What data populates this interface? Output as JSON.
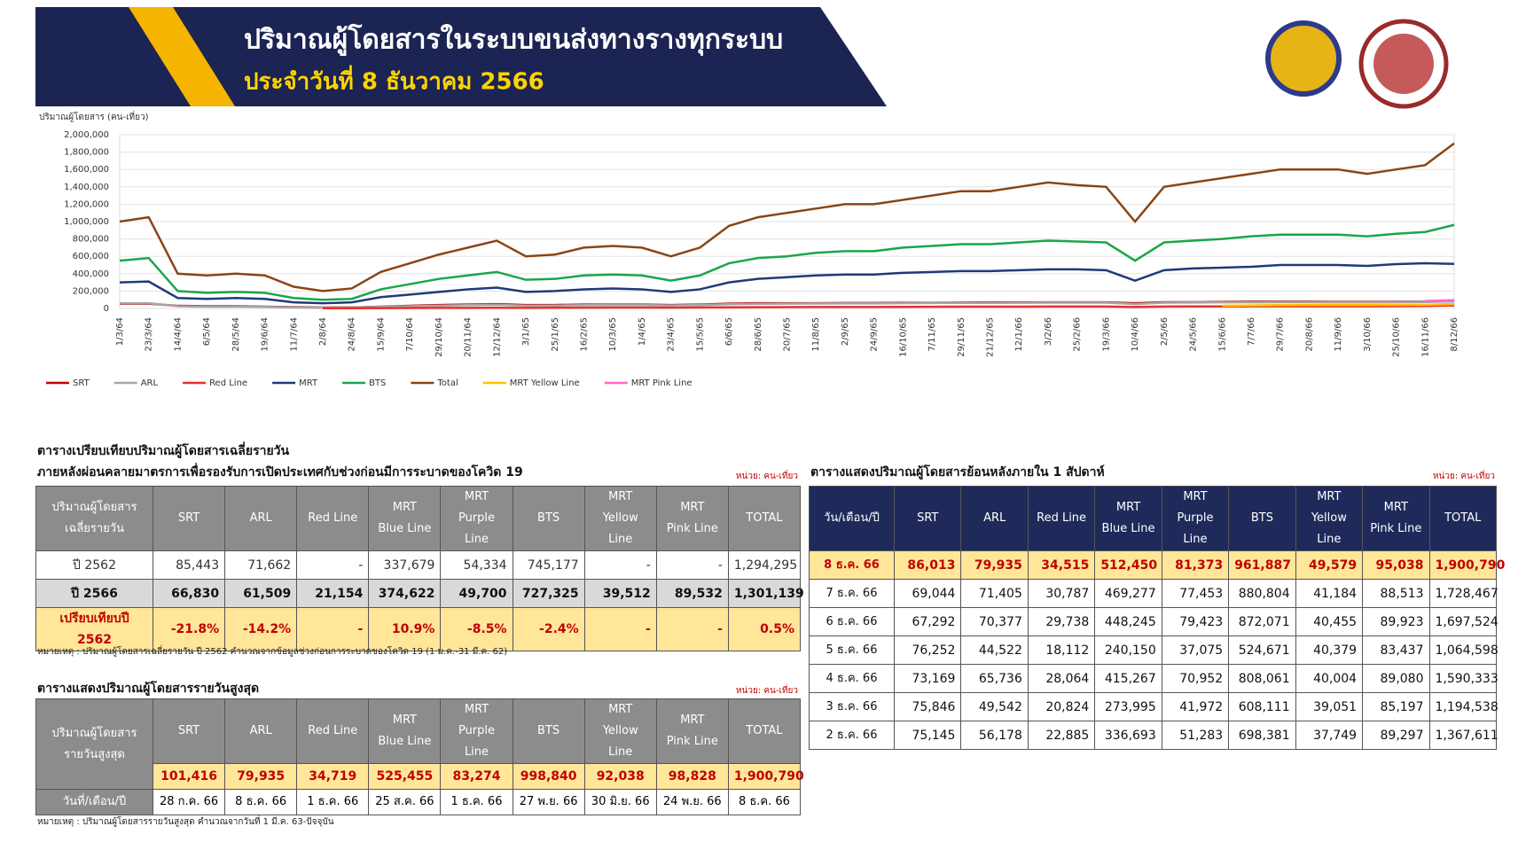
{
  "header": {
    "title": "ปริมาณผู้โดยสารในระบบขนส่งทางรางทุกระบบ",
    "subtitle": "ประจำวันที่ 8 ธันวาคม 2566"
  },
  "chart_data": {
    "type": "line",
    "y_label": "ปริมาณผู้โดยสาร (คน-เที่ยว)",
    "categories": [
      "1/3/64",
      "23/3/64",
      "14/4/64",
      "6/5/64",
      "28/5/64",
      "19/6/64",
      "11/7/64",
      "2/8/64",
      "24/8/64",
      "15/9/64",
      "7/10/64",
      "29/10/64",
      "20/11/64",
      "12/12/64",
      "3/1/65",
      "25/1/65",
      "16/2/65",
      "10/3/65",
      "1/4/65",
      "23/4/65",
      "15/5/65",
      "6/6/65",
      "28/6/65",
      "20/7/65",
      "11/8/65",
      "2/9/65",
      "24/9/65",
      "16/10/65",
      "7/11/65",
      "29/11/65",
      "21/12/65",
      "12/1/66",
      "3/2/66",
      "25/2/66",
      "19/3/66",
      "10/4/66",
      "2/5/66",
      "24/5/66",
      "15/6/66",
      "7/7/66",
      "29/7/66",
      "20/8/66",
      "11/9/66",
      "3/10/66",
      "25/10/66",
      "16/11/66",
      "8/12/66"
    ],
    "ylim": [
      0,
      2000000
    ],
    "yticks": [
      0,
      {
        "value": 200000,
        "label": "200,000"
      },
      {
        "value": 400000,
        "label": "400,000"
      },
      {
        "value": 600000,
        "label": "600,000"
      },
      {
        "value": 800000,
        "label": "800,000"
      },
      {
        "value": 1000000,
        "label": "1,000,000"
      },
      {
        "value": 1200000,
        "label": "1,200,000"
      },
      {
        "value": 1400000,
        "label": "1,400,000"
      },
      {
        "value": 1600000,
        "label": "1,600,000"
      },
      {
        "value": 1800000,
        "label": "1,800,000"
      },
      {
        "value": 2000000,
        "label": "2,000,000"
      }
    ],
    "grid": true,
    "series": [
      {
        "name": "SRT",
        "color": "#c00000",
        "values": [
          55000,
          55000,
          30000,
          25000,
          25000,
          20000,
          15000,
          10000,
          12000,
          20000,
          30000,
          40000,
          45000,
          50000,
          40000,
          40000,
          45000,
          45000,
          45000,
          40000,
          45000,
          55000,
          60000,
          60000,
          60000,
          62000,
          62000,
          65000,
          65000,
          68000,
          70000,
          70000,
          70000,
          70000,
          70000,
          60000,
          72000,
          72000,
          75000,
          78000,
          78000,
          78000,
          75000,
          75000,
          76000,
          78000,
          86013
        ]
      },
      {
        "name": "ARL",
        "color": "#a6a6a6",
        "values": [
          60000,
          60000,
          25000,
          20000,
          20000,
          18000,
          12000,
          8000,
          10000,
          18000,
          25000,
          32000,
          38000,
          42000,
          32000,
          33000,
          38000,
          40000,
          40000,
          35000,
          40000,
          48000,
          52000,
          55000,
          56000,
          58000,
          58000,
          60000,
          62000,
          64000,
          64000,
          65000,
          66000,
          66000,
          66000,
          50000,
          66000,
          68000,
          70000,
          70000,
          72000,
          72000,
          70000,
          70000,
          72000,
          74000,
          79935
        ]
      },
      {
        "name": "Red Line",
        "color": "#e8312a",
        "values": [
          null,
          null,
          null,
          null,
          null,
          null,
          null,
          3000,
          3000,
          4000,
          5000,
          6000,
          7000,
          8000,
          7000,
          8000,
          9000,
          10000,
          10000,
          9000,
          11000,
          13000,
          14000,
          15000,
          16000,
          17000,
          17000,
          18000,
          19000,
          20000,
          20000,
          21000,
          22000,
          22000,
          22000,
          16000,
          22000,
          23000,
          23000,
          24000,
          24000,
          24000,
          24000,
          24000,
          25000,
          28000,
          34515
        ]
      },
      {
        "name": "MRT",
        "color": "#1f3a7a",
        "values": [
          300000,
          310000,
          120000,
          110000,
          120000,
          110000,
          70000,
          60000,
          70000,
          130000,
          160000,
          190000,
          220000,
          240000,
          190000,
          200000,
          220000,
          230000,
          220000,
          190000,
          220000,
          300000,
          340000,
          360000,
          380000,
          390000,
          390000,
          410000,
          420000,
          430000,
          430000,
          440000,
          450000,
          450000,
          440000,
          320000,
          440000,
          460000,
          470000,
          480000,
          500000,
          500000,
          500000,
          490000,
          510000,
          520000,
          512450
        ]
      },
      {
        "name": "BTS",
        "color": "#1aa64a",
        "values": [
          550000,
          580000,
          200000,
          180000,
          190000,
          180000,
          120000,
          100000,
          110000,
          220000,
          280000,
          340000,
          380000,
          420000,
          330000,
          340000,
          380000,
          390000,
          380000,
          320000,
          380000,
          520000,
          580000,
          600000,
          640000,
          660000,
          660000,
          700000,
          720000,
          740000,
          740000,
          760000,
          780000,
          770000,
          760000,
          550000,
          760000,
          780000,
          800000,
          830000,
          850000,
          850000,
          850000,
          830000,
          860000,
          880000,
          961887
        ]
      },
      {
        "name": "Total",
        "color": "#8b4513",
        "values": [
          1000000,
          1050000,
          400000,
          380000,
          400000,
          380000,
          250000,
          200000,
          230000,
          420000,
          520000,
          620000,
          700000,
          780000,
          600000,
          620000,
          700000,
          720000,
          700000,
          600000,
          700000,
          950000,
          1050000,
          1100000,
          1150000,
          1200000,
          1200000,
          1250000,
          1300000,
          1350000,
          1350000,
          1400000,
          1450000,
          1420000,
          1400000,
          1000000,
          1400000,
          1450000,
          1500000,
          1550000,
          1600000,
          1600000,
          1600000,
          1550000,
          1600000,
          1650000,
          1900790
        ]
      },
      {
        "name": "MRT Yellow Line",
        "color": "#ffc000",
        "values": [
          null,
          null,
          null,
          null,
          null,
          null,
          null,
          null,
          null,
          null,
          null,
          null,
          null,
          null,
          null,
          null,
          null,
          null,
          null,
          null,
          null,
          null,
          null,
          null,
          null,
          null,
          null,
          null,
          null,
          null,
          null,
          null,
          null,
          null,
          null,
          null,
          null,
          null,
          30000,
          35000,
          38000,
          40000,
          40000,
          40000,
          41000,
          42000,
          49579
        ]
      },
      {
        "name": "MRT Pink Line",
        "color": "#ff66cc",
        "values": [
          null,
          null,
          null,
          null,
          null,
          null,
          null,
          null,
          null,
          null,
          null,
          null,
          null,
          null,
          null,
          null,
          null,
          null,
          null,
          null,
          null,
          null,
          null,
          null,
          null,
          null,
          null,
          null,
          null,
          null,
          null,
          null,
          null,
          null,
          null,
          null,
          null,
          null,
          null,
          null,
          null,
          null,
          null,
          null,
          null,
          85000,
          95038
        ]
      }
    ]
  },
  "table1": {
    "title": "ตารางเปรียบเทียบปริมาณผู้โดยสารเฉลี่ยรายวัน",
    "subtitle": "ภายหลังผ่อนคลายมาตรการเพื่อรองรับการเปิดประเทศกับช่วงก่อนมีการระบาดของโควิด 19",
    "unit": "หน่วย: คน-เที่ยว",
    "columns": [
      "ปริมาณผู้โดยสาร\nเฉลี่ยรายวัน",
      "SRT",
      "ARL",
      "Red Line",
      "MRT\nBlue Line",
      "MRT\nPurple Line",
      "BTS",
      "MRT\nYellow Line",
      "MRT\nPink Line",
      "TOTAL"
    ],
    "rows": [
      [
        "ปี 2562",
        "85,443",
        "71,662",
        "-",
        "337,679",
        "54,334",
        "745,177",
        "-",
        "-",
        "1,294,295"
      ],
      [
        "ปี 2566",
        "66,830",
        "61,509",
        "21,154",
        "374,622",
        "49,700",
        "727,325",
        "39,512",
        "89,532",
        "1,301,139"
      ],
      [
        "เปรียบเทียบปี 2562",
        "-21.8%",
        "-14.2%",
        "-",
        "10.9%",
        "-8.5%",
        "-2.4%",
        "-",
        "-",
        "0.5%"
      ]
    ],
    "note": "หมายเหตุ : ปริมาณผู้โดยสารเฉลี่ยรายวัน ปี 2562 คำนวณจากข้อมูลช่วงก่อนการระบาดของโควิด 19 (1 ม.ค.-31 มี.ค. 62)"
  },
  "table2": {
    "title": "ตารางแสดงปริมาณผู้โดยสารรายวันสูงสุด",
    "unit": "หน่วย: คน-เที่ยว",
    "columns": [
      "ปริมาณผู้โดยสาร\nรายวันสูงสุด",
      "SRT",
      "ARL",
      "Red Line",
      "MRT\nBlue Line",
      "MRT\nPurple Line",
      "BTS",
      "MRT\nYellow Line",
      "MRT\nPink Line",
      "TOTAL"
    ],
    "max_row": [
      "101,416",
      "79,935",
      "34,719",
      "525,455",
      "83,274",
      "998,840",
      "92,038",
      "98,828",
      "1,900,790"
    ],
    "date_row": [
      "วันที่/เดือน/ปี",
      "28 ก.ค. 66",
      "8 ธ.ค. 66",
      "1 ธ.ค. 66",
      "25 ส.ค. 66",
      "1 ธ.ค. 66",
      "27 พ.ย. 66",
      "30 มิ.ย. 66",
      "24 พ.ย. 66",
      "8 ธ.ค. 66"
    ],
    "note": "หมายเหตุ : ปริมาณผู้โดยสารรายวันสูงสุด คำนวณจากวันที่ 1 มี.ค. 63-ปัจจุบัน"
  },
  "table3": {
    "title": "ตารางแสดงปริมาณผู้โดยสารย้อนหลังภายใน 1 สัปดาห์",
    "unit": "หน่วย: คน-เที่ยว",
    "columns": [
      "วัน/เดือน/ปี",
      "SRT",
      "ARL",
      "Red Line",
      "MRT\nBlue Line",
      "MRT\nPurple Line",
      "BTS",
      "MRT\nYellow Line",
      "MRT\nPink Line",
      "TOTAL"
    ],
    "rows": [
      [
        "8 ธ.ค. 66",
        "86,013",
        "79,935",
        "34,515",
        "512,450",
        "81,373",
        "961,887",
        "49,579",
        "95,038",
        "1,900,790"
      ],
      [
        "7 ธ.ค. 66",
        "69,044",
        "71,405",
        "30,787",
        "469,277",
        "77,453",
        "880,804",
        "41,184",
        "88,513",
        "1,728,467"
      ],
      [
        "6 ธ.ค. 66",
        "67,292",
        "70,377",
        "29,738",
        "448,245",
        "79,423",
        "872,071",
        "40,455",
        "89,923",
        "1,697,524"
      ],
      [
        "5 ธ.ค. 66",
        "76,252",
        "44,522",
        "18,112",
        "240,150",
        "37,075",
        "524,671",
        "40,379",
        "83,437",
        "1,064,598"
      ],
      [
        "4 ธ.ค. 66",
        "73,169",
        "65,736",
        "28,064",
        "415,267",
        "70,952",
        "808,061",
        "40,004",
        "89,080",
        "1,590,333"
      ],
      [
        "3 ธ.ค. 66",
        "75,846",
        "49,542",
        "20,824",
        "273,995",
        "41,972",
        "608,111",
        "39,051",
        "85,197",
        "1,194,538"
      ],
      [
        "2 ธ.ค. 66",
        "75,145",
        "56,178",
        "22,885",
        "336,693",
        "51,283",
        "698,381",
        "37,749",
        "89,297",
        "1,367,611"
      ]
    ]
  }
}
